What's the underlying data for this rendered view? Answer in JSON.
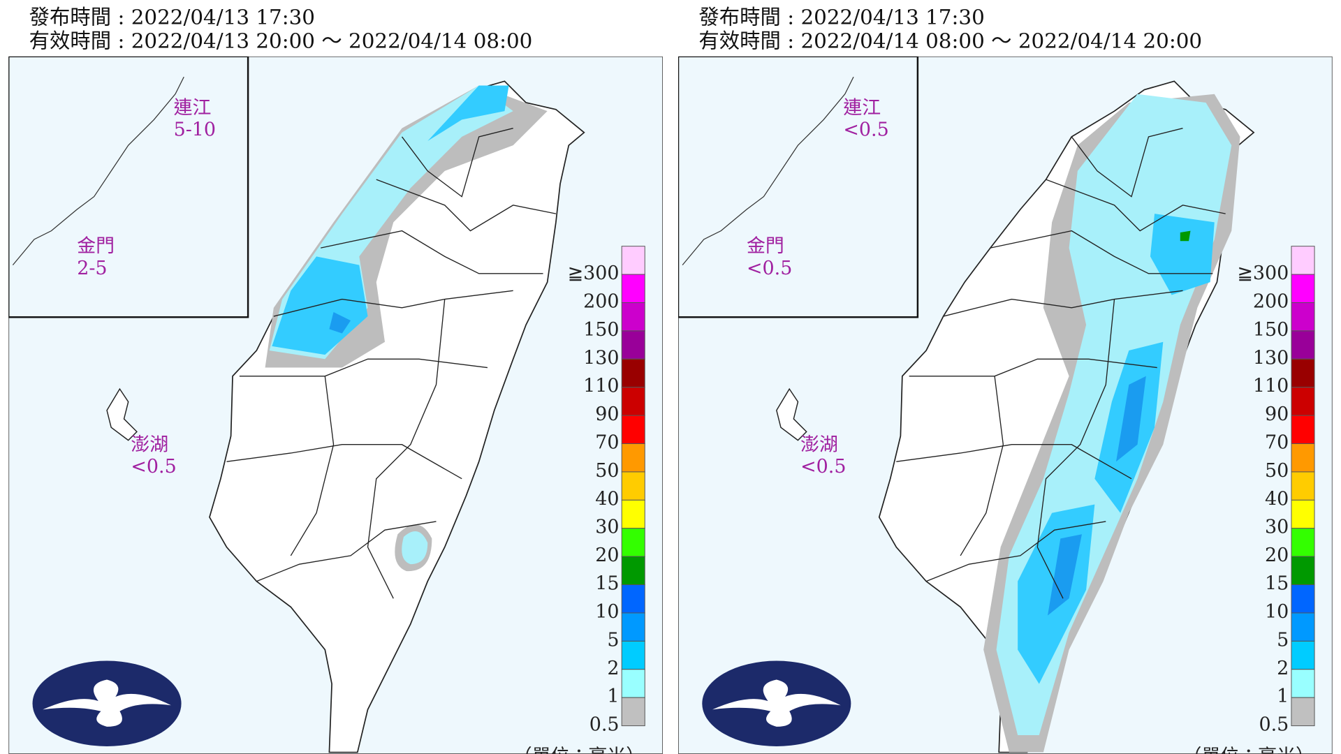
{
  "panels": [
    {
      "issued": "發布時間 : 2022/04/13 17:30",
      "valid": "有效時間 : 2022/04/13 20:00 ～ 2022/04/14 08:00",
      "islands": [
        {
          "name": "連江",
          "value": "5-10"
        },
        {
          "name": "金門",
          "value": "2-5"
        },
        {
          "name": "澎湖",
          "value": "<0.5"
        }
      ]
    },
    {
      "issued": "發布時間 : 2022/04/13 17:30",
      "valid": "有效時間 : 2022/04/14 08:00 ～ 2022/04/14 20:00",
      "islands": [
        {
          "name": "連江",
          "value": "<0.5"
        },
        {
          "name": "金門",
          "value": "<0.5"
        },
        {
          "name": "澎湖",
          "value": "<0.5"
        }
      ]
    }
  ],
  "legend": {
    "labels": [
      "≧300",
      "200",
      "150",
      "130",
      "110",
      "90",
      "70",
      "50",
      "40",
      "30",
      "20",
      "15",
      "10",
      "5",
      "2",
      "1",
      "0.5"
    ],
    "colors": [
      "#ffccff",
      "#ff00ff",
      "#cc00cc",
      "#990099",
      "#990000",
      "#cc0000",
      "#ff0000",
      "#ff9900",
      "#ffcc00",
      "#ffff00",
      "#33ff00",
      "#009900",
      "#0066ff",
      "#0099ff",
      "#00ccff",
      "#99ffff",
      "#c0c0c0"
    ],
    "unit": "（單位：毫米）"
  }
}
